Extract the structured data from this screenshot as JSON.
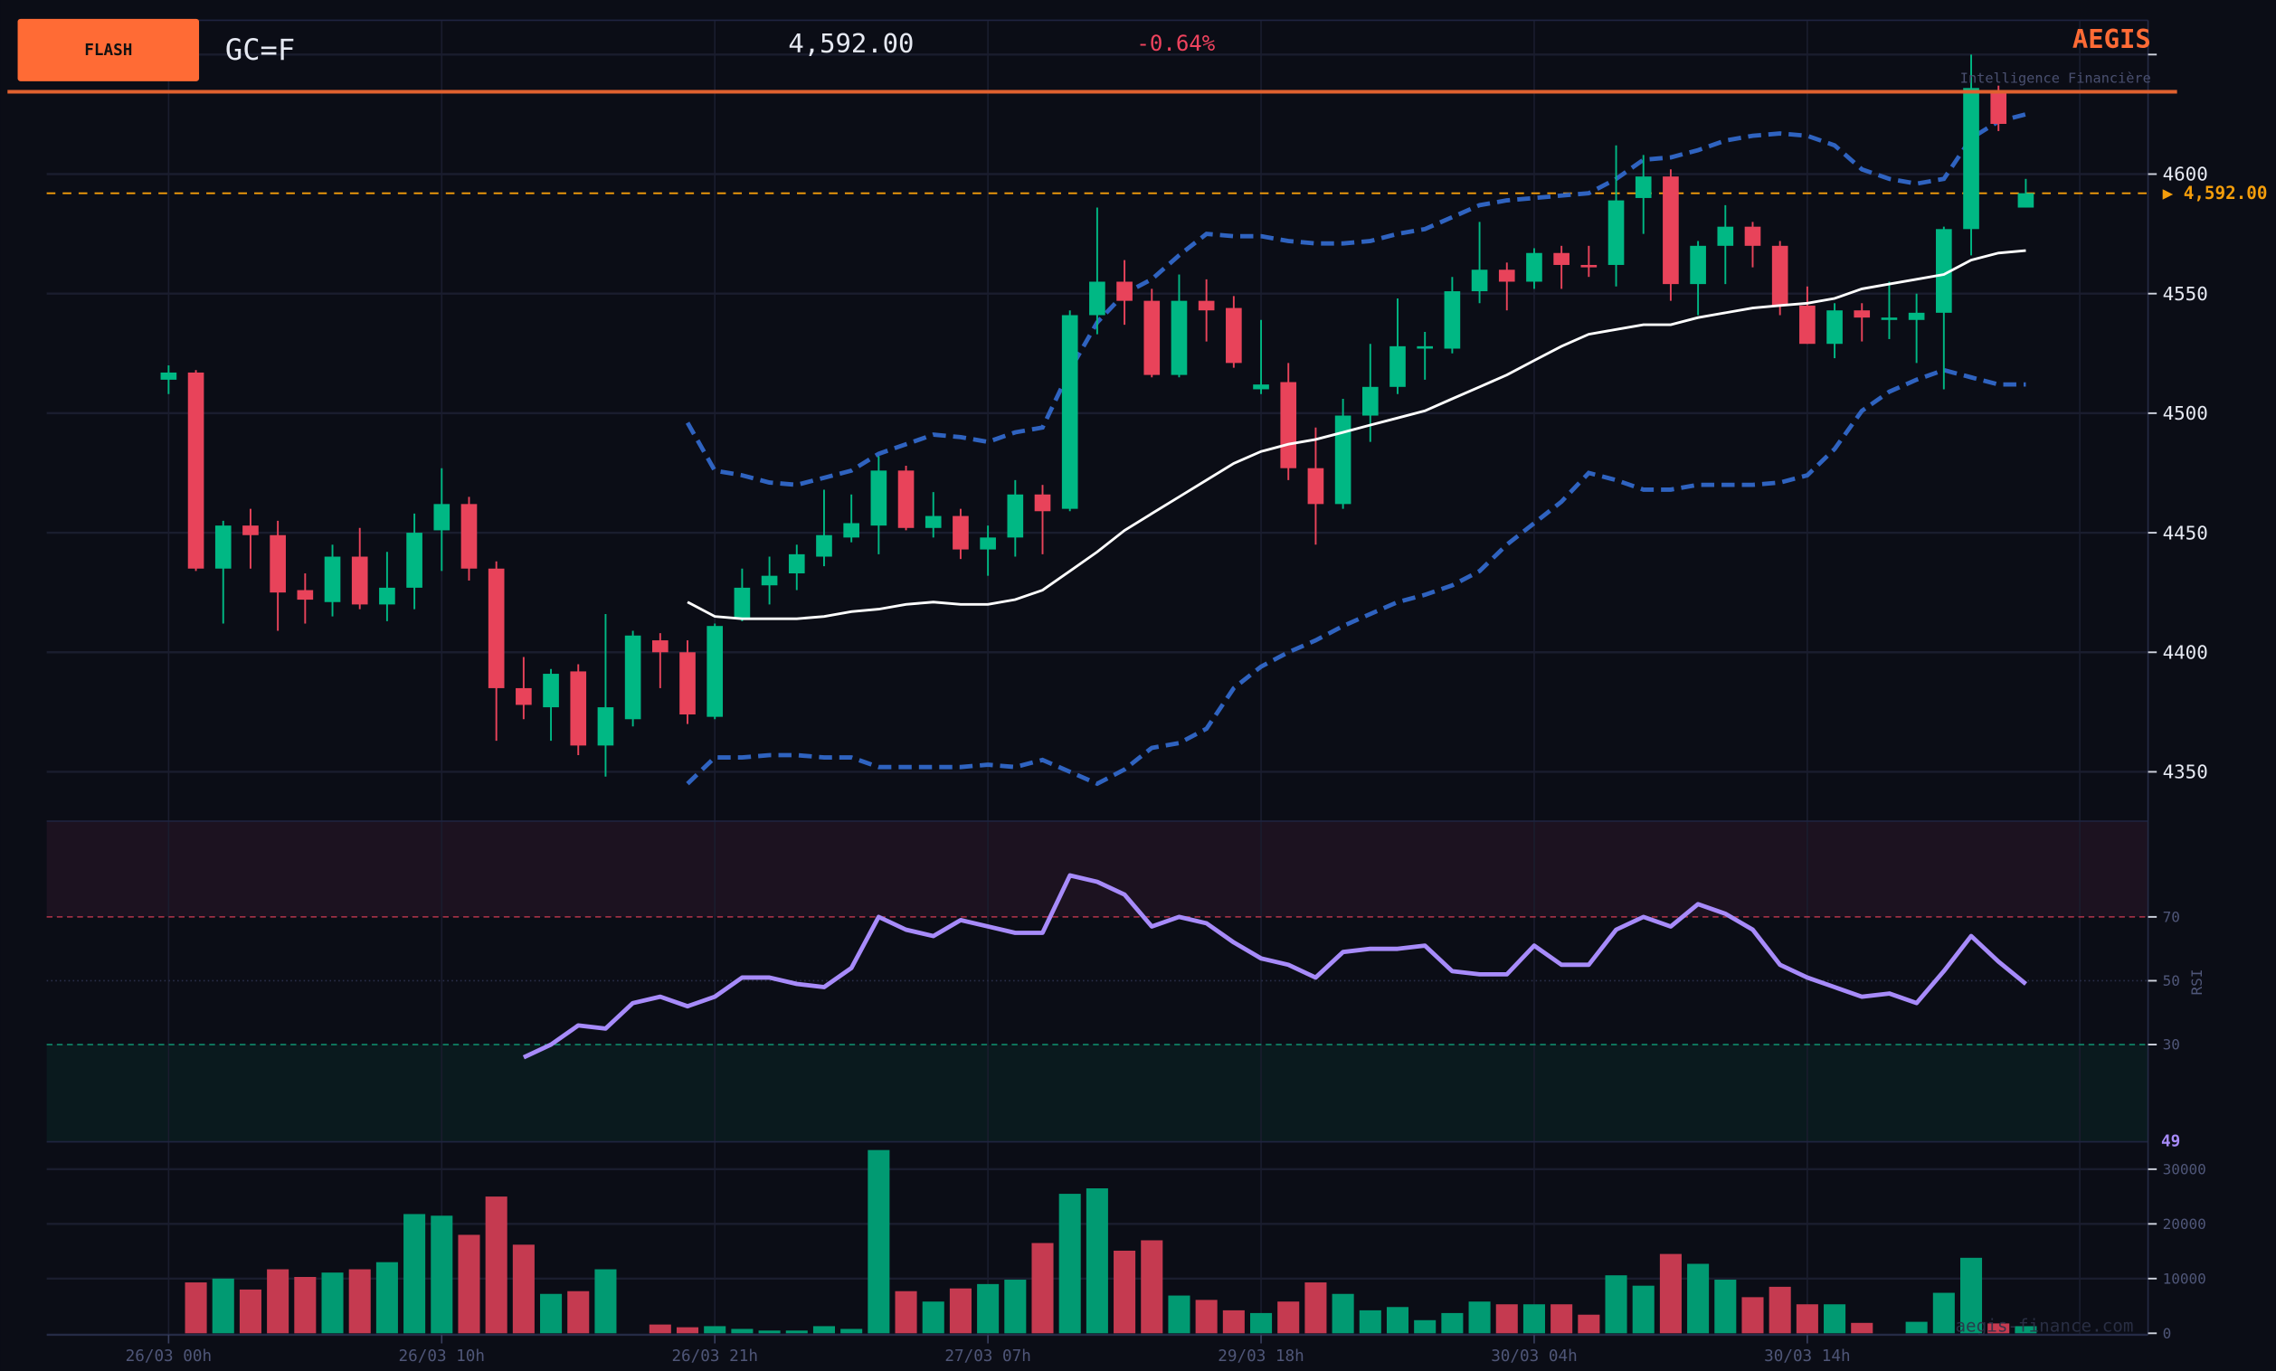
{
  "header": {
    "badge_label": "FLASH",
    "symbol": "GC=F",
    "price": "4,592.00",
    "change": "-0.64%",
    "brand": "AEGIS",
    "brand_subtitle": "Intelligence Financière",
    "watermark": "aegis-finance.com"
  },
  "colors": {
    "background": "#0b0d16",
    "accent": "#ff6b35",
    "up": "#00b884",
    "down": "#e8435a",
    "volume_up": "#019a72",
    "volume_down": "#c53a50",
    "bollinger": "#2f63c0",
    "sma": "#ffffff",
    "rsi": "#a78bfa",
    "last_price": "#f59e0b",
    "grid": "#1a1d2e"
  },
  "chart_data": [
    {
      "type": "candlestick",
      "ylim": [
        4330,
        4665
      ],
      "yticks": [
        "4350",
        "4400",
        "4450",
        "4500",
        "4550",
        "4600"
      ],
      "xtick_labels": [
        "26/03 00h",
        "26/03 10h",
        "26/03 21h",
        "27/03 07h",
        "29/03 18h",
        "30/03 04h",
        "30/03 14h"
      ],
      "last_price_label": "▶ 4,592.00",
      "last_price": 4592,
      "candles_ohlc": [
        [
          4514,
          4520,
          4508,
          4517
        ],
        [
          4517,
          4518,
          4434,
          4435
        ],
        [
          4435,
          4455,
          4412,
          4453
        ],
        [
          4453,
          4460,
          4435,
          4449
        ],
        [
          4449,
          4455,
          4409,
          4425
        ],
        [
          4426,
          4433,
          4412,
          4422
        ],
        [
          4421,
          4445,
          4415,
          4440
        ],
        [
          4440,
          4452,
          4418,
          4420
        ],
        [
          4420,
          4442,
          4413,
          4427
        ],
        [
          4427,
          4458,
          4418,
          4450
        ],
        [
          4451,
          4477,
          4434,
          4462
        ],
        [
          4462,
          4465,
          4430,
          4435
        ],
        [
          4435,
          4438,
          4363,
          4385
        ],
        [
          4385,
          4398,
          4372,
          4378
        ],
        [
          4377,
          4393,
          4363,
          4391
        ],
        [
          4392,
          4395,
          4357,
          4361
        ],
        [
          4361,
          4416,
          4348,
          4377
        ],
        [
          4372,
          4409,
          4369,
          4407
        ],
        [
          4405,
          4408,
          4385,
          4400
        ],
        [
          4400,
          4405,
          4370,
          4374
        ],
        [
          4373,
          4412,
          4372,
          4411
        ],
        [
          4414,
          4435,
          4413,
          4427
        ],
        [
          4428,
          4440,
          4420,
          4432
        ],
        [
          4433,
          4445,
          4426,
          4441
        ],
        [
          4440,
          4468,
          4436,
          4449
        ],
        [
          4448,
          4466,
          4446,
          4454
        ],
        [
          4453,
          4482,
          4441,
          4476
        ],
        [
          4476,
          4478,
          4451,
          4452
        ],
        [
          4452,
          4467,
          4448,
          4457
        ],
        [
          4457,
          4460,
          4439,
          4443
        ],
        [
          4443,
          4453,
          4432,
          4448
        ],
        [
          4448,
          4472,
          4440,
          4466
        ],
        [
          4466,
          4470,
          4441,
          4459
        ],
        [
          4460,
          4543,
          4459,
          4541
        ],
        [
          4541,
          4586,
          4533,
          4555
        ],
        [
          4555,
          4564,
          4537,
          4547
        ],
        [
          4547,
          4552,
          4515,
          4516
        ],
        [
          4516,
          4558,
          4515,
          4547
        ],
        [
          4547,
          4556,
          4530,
          4543
        ],
        [
          4544,
          4549,
          4519,
          4521
        ],
        [
          4510,
          4539,
          4508,
          4512
        ],
        [
          4513,
          4521,
          4472,
          4477
        ],
        [
          4477,
          4494,
          4445,
          4462
        ],
        [
          4462,
          4506,
          4460,
          4499
        ],
        [
          4499,
          4529,
          4488,
          4511
        ],
        [
          4511,
          4548,
          4508,
          4528
        ],
        [
          4527,
          4534,
          4514,
          4528
        ],
        [
          4527,
          4557,
          4525,
          4551
        ],
        [
          4551,
          4580,
          4546,
          4560
        ],
        [
          4560,
          4563,
          4543,
          4555
        ],
        [
          4555,
          4569,
          4552,
          4567
        ],
        [
          4567,
          4570,
          4552,
          4562
        ],
        [
          4562,
          4570,
          4557,
          4561
        ],
        [
          4562,
          4612,
          4553,
          4589
        ],
        [
          4590,
          4608,
          4575,
          4599
        ],
        [
          4599,
          4602,
          4547,
          4554
        ],
        [
          4554,
          4572,
          4541,
          4570
        ],
        [
          4570,
          4587,
          4554,
          4578
        ],
        [
          4578,
          4580,
          4561,
          4570
        ],
        [
          4570,
          4572,
          4541,
          4545
        ],
        [
          4545,
          4553,
          4529,
          4529
        ],
        [
          4529,
          4546,
          4523,
          4543
        ],
        [
          4543,
          4546,
          4530,
          4540
        ],
        [
          4539,
          4555,
          4531,
          4540
        ],
        [
          4539,
          4550,
          4521,
          4542
        ],
        [
          4542,
          4578,
          4510,
          4577
        ],
        [
          4577,
          4650,
          4566,
          4636
        ],
        [
          4635,
          4637,
          4618,
          4621
        ],
        [
          4586,
          4598,
          4586,
          4592
        ]
      ],
      "overlay_start_index": 19,
      "sma": [
        4421,
        4415,
        4414,
        4414,
        4414,
        4415,
        4417,
        4418,
        4420,
        4421,
        4420,
        4420,
        4422,
        4426,
        4434,
        4442,
        4451,
        4458,
        4465,
        4472,
        4479,
        4484,
        4487,
        4489,
        4492,
        4495,
        4498,
        4501,
        4506,
        4511,
        4516,
        4522,
        4528,
        4533,
        4535,
        4537,
        4537,
        4540,
        4542,
        4544,
        4545,
        4546,
        4548,
        4552,
        4554,
        4556,
        4558,
        4564,
        4567,
        4568
      ],
      "bollinger_upper": [
        4496,
        4476,
        4474,
        4471,
        4470,
        4473,
        4476,
        4483,
        4487,
        4491,
        4490,
        4488,
        4492,
        4494,
        4518,
        4538,
        4550,
        4556,
        4566,
        4575,
        4574,
        4574,
        4572,
        4571,
        4571,
        4572,
        4575,
        4577,
        4582,
        4587,
        4589,
        4590,
        4591,
        4592,
        4598,
        4606,
        4607,
        4610,
        4614,
        4616,
        4617,
        4616,
        4612,
        4602,
        4598,
        4596,
        4598,
        4615,
        4622,
        4625
      ],
      "bollinger_lower": [
        4345,
        4356,
        4356,
        4357,
        4357,
        4356,
        4356,
        4352,
        4352,
        4352,
        4352,
        4353,
        4352,
        4355,
        4350,
        4345,
        4351,
        4360,
        4362,
        4368,
        4385,
        4394,
        4400,
        4405,
        4411,
        4416,
        4421,
        4424,
        4428,
        4434,
        4445,
        4454,
        4463,
        4475,
        4472,
        4468,
        4468,
        4470,
        4470,
        4470,
        4471,
        4474,
        4485,
        4501,
        4509,
        4514,
        4518,
        4515,
        4512,
        4512
      ]
    },
    {
      "type": "line",
      "ylabel": "RSI",
      "ylim": [
        0,
        100
      ],
      "yticks": [
        "30",
        "50",
        "70"
      ],
      "overbought": 70,
      "oversold": 30,
      "current_label": "49",
      "start_index": 13,
      "values": [
        26,
        30,
        36,
        35,
        43,
        45,
        42,
        45,
        51,
        51,
        49,
        48,
        54,
        70,
        66,
        64,
        69,
        67,
        65,
        65,
        83,
        81,
        77,
        67,
        70,
        68,
        62,
        57,
        55,
        51,
        59,
        60,
        60,
        61,
        53,
        52,
        52,
        61,
        55,
        55,
        66,
        70,
        67,
        74,
        71,
        66,
        55,
        51,
        48,
        45,
        46,
        43,
        53,
        64,
        56,
        49
      ]
    },
    {
      "type": "bar",
      "ylim": [
        0,
        35000
      ],
      "yticks": [
        "0",
        "10000",
        "20000",
        "30000"
      ],
      "values": [
        0,
        9300,
        10000,
        8000,
        11700,
        10300,
        11100,
        11700,
        13000,
        21800,
        21500,
        18000,
        25000,
        16200,
        7200,
        7700,
        11700,
        0,
        1600,
        1100,
        1300,
        800,
        500,
        500,
        1300,
        800,
        33500,
        7700,
        5800,
        8200,
        9000,
        9800,
        16500,
        25500,
        26500,
        15100,
        17000,
        6900,
        6100,
        4200,
        3700,
        5800,
        9300,
        7200,
        4200,
        4800,
        2400,
        3700,
        5800,
        5300,
        5300,
        5300,
        3400,
        10600,
        8700,
        14500,
        12700,
        9800,
        6600,
        8500,
        5300,
        5300,
        1900,
        0,
        2100,
        7400,
        13800,
        1800,
        1300
      ]
    }
  ]
}
